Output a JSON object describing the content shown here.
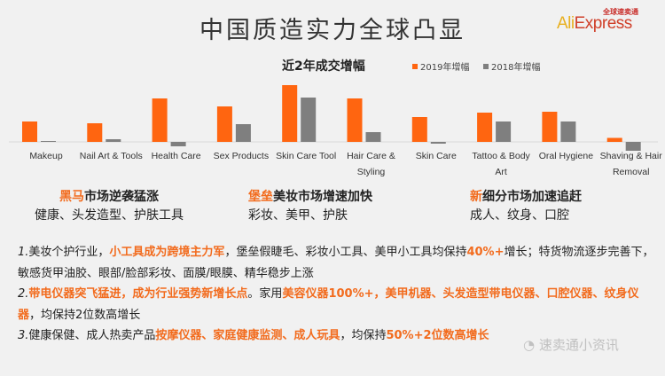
{
  "title": "中国质造实力全球凸显",
  "logo": {
    "cn": "全球速卖通",
    "ali": "Ali",
    "express": "Express"
  },
  "colors": {
    "s2019": "#ff6510",
    "s2018": "#7f7f7f",
    "accent": "#f26b1d"
  },
  "chart_data": {
    "type": "bar",
    "title": "近2年成交增幅",
    "categories": [
      "Makeup",
      "Nail Art & Tools",
      "Health Care",
      "Sex Products",
      "Skin Care Tool",
      "Hair Care & Styling",
      "Skin Care",
      "Tattoo & Body Art",
      "Oral Hygiene",
      "Shaving & Hair Removal"
    ],
    "series": [
      {
        "name": "2019年增幅",
        "values": [
          23,
          21,
          49,
          40,
          64,
          49,
          28,
          33,
          34,
          4.5
        ]
      },
      {
        "name": "2018年增幅",
        "values": [
          1,
          3,
          -5,
          20,
          50,
          11,
          -2,
          23,
          23,
          -10
        ]
      }
    ],
    "note": "relative units, no value axis shown",
    "legend": "top-right",
    "grid": false
  },
  "highlights": [
    {
      "accent": "黑马",
      "rest": "市场逆袭猛涨",
      "sub": "健康、头发造型、护肤工具"
    },
    {
      "accent": "堡垒",
      "rest": "美妆市场增速加快",
      "sub": "彩妆、美甲、护肤"
    },
    {
      "accent": "新",
      "rest": "细分市场加速追赶",
      "sub": "成人、纹身、口腔"
    }
  ],
  "paragraphs": [
    [
      {
        "t": "1.",
        "n": 1
      },
      {
        "t": "美妆个护行业，"
      },
      {
        "t": "小工具成为跨境主力军",
        "o": 1
      },
      {
        "t": "，堡垒假睫毛、彩妆小工具、美甲小工具均保持"
      },
      {
        "t": "40%+",
        "o": 1
      },
      {
        "t": "增长；特货物流逐步完善下，敏感货甲油胶、眼部/脸部彩妆、面膜/眼膜、精华稳步上涨"
      }
    ],
    [
      {
        "t": "2.",
        "n": 1
      },
      {
        "t": "带电仪器突飞猛进，成为行业强势新增长点",
        "o": 1
      },
      {
        "t": "。家用"
      },
      {
        "t": "美容仪器100%+，美甲机器、头发造型带电仪器、口腔仪器、纹身仪器",
        "o": 1
      },
      {
        "t": "，均保持2位数高增长"
      }
    ],
    [
      {
        "t": "3.",
        "n": 1
      },
      {
        "t": "健康保健、成人热卖产品"
      },
      {
        "t": "按摩仪器、家庭健康监测、成人玩具",
        "o": 1
      },
      {
        "t": "，均保持"
      },
      {
        "t": "50%+2位数高增长",
        "o": 1
      }
    ]
  ],
  "watermark": "速卖通小资讯"
}
